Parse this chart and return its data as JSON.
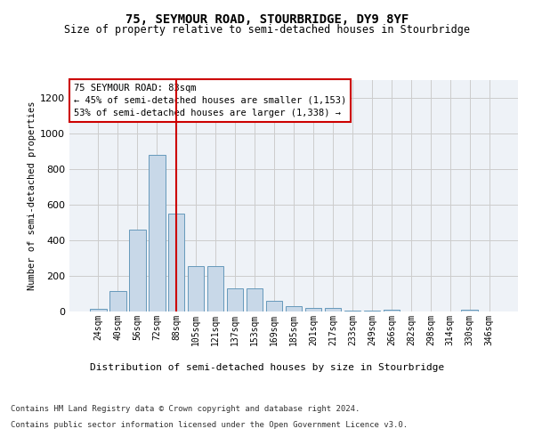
{
  "title": "75, SEYMOUR ROAD, STOURBRIDGE, DY9 8YF",
  "subtitle": "Size of property relative to semi-detached houses in Stourbridge",
  "xlabel": "Distribution of semi-detached houses by size in Stourbridge",
  "ylabel": "Number of semi-detached properties",
  "categories": [
    "24sqm",
    "40sqm",
    "56sqm",
    "72sqm",
    "88sqm",
    "105sqm",
    "121sqm",
    "137sqm",
    "153sqm",
    "169sqm",
    "185sqm",
    "201sqm",
    "217sqm",
    "233sqm",
    "249sqm",
    "266sqm",
    "282sqm",
    "298sqm",
    "314sqm",
    "330sqm",
    "346sqm"
  ],
  "values": [
    15,
    115,
    460,
    880,
    550,
    255,
    255,
    130,
    130,
    60,
    30,
    20,
    20,
    5,
    5,
    10,
    0,
    0,
    0,
    10,
    0
  ],
  "bar_color": "#c8d8e8",
  "bar_edge_color": "#6699bb",
  "highlight_x": "88sqm",
  "highlight_line_color": "#cc0000",
  "annotation_text": "75 SEYMOUR ROAD: 83sqm\n← 45% of semi-detached houses are smaller (1,153)\n53% of semi-detached houses are larger (1,338) →",
  "annotation_box_color": "#ffffff",
  "annotation_box_edge_color": "#cc0000",
  "ylim": [
    0,
    1300
  ],
  "yticks": [
    0,
    200,
    400,
    600,
    800,
    1000,
    1200
  ],
  "grid_color": "#cccccc",
  "background_color": "#eef2f7",
  "footer_line1": "Contains HM Land Registry data © Crown copyright and database right 2024.",
  "footer_line2": "Contains public sector information licensed under the Open Government Licence v3.0."
}
